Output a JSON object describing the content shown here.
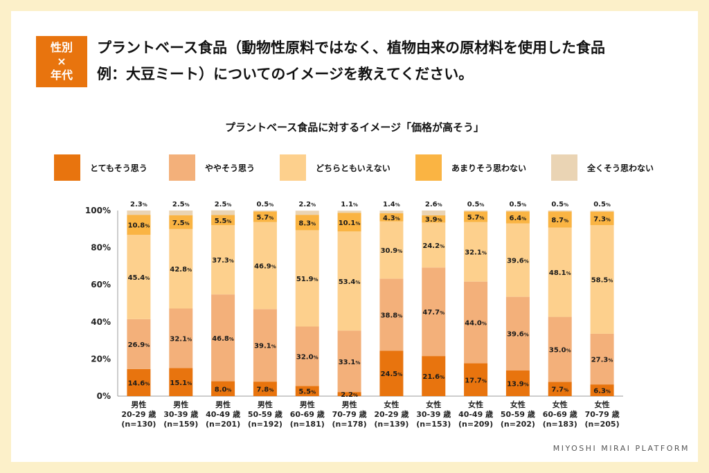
{
  "header": {
    "tag_line1": "性別",
    "tag_line2": "×",
    "tag_line3": "年代",
    "title_line1": "プラントベース食品（動物性原料ではなく、植物由来の原材料を使用した食品",
    "title_line2": "例：大豆ミート）についてのイメージを教えてください。"
  },
  "footer": {
    "brand": "MIYOSHI MIRAI PLATFORM"
  },
  "colors": {
    "totemo": "#e8740e",
    "yaya": "#f3b07a",
    "dochira": "#fdd08d",
    "amari": "#fab443",
    "mattaku": "#ead4b4"
  },
  "chart_data": {
    "type": "bar",
    "stacked": true,
    "title": "プラントベース食品に対するイメージ「価格が高そう」",
    "ylim": [
      0,
      100
    ],
    "yticks": [
      "0%",
      "20%",
      "40%",
      "60%",
      "80%",
      "100%"
    ],
    "unit": "%",
    "categories": [
      {
        "gender": "男性",
        "age": "20-29 歳",
        "n": "(n=130)"
      },
      {
        "gender": "男性",
        "age": "30-39 歳",
        "n": "(n=159)"
      },
      {
        "gender": "男性",
        "age": "40-49 歳",
        "n": "(n=201)"
      },
      {
        "gender": "男性",
        "age": "50-59 歳",
        "n": "(n=192)"
      },
      {
        "gender": "男性",
        "age": "60-69 歳",
        "n": "(n=181)"
      },
      {
        "gender": "男性",
        "age": "70-79 歳",
        "n": "(n=178)"
      },
      {
        "gender": "女性",
        "age": "20-29 歳",
        "n": "(n=139)"
      },
      {
        "gender": "女性",
        "age": "30-39 歳",
        "n": "(n=153)"
      },
      {
        "gender": "女性",
        "age": "40-49 歳",
        "n": "(n=209)"
      },
      {
        "gender": "女性",
        "age": "50-59 歳",
        "n": "(n=202)"
      },
      {
        "gender": "女性",
        "age": "60-69 歳",
        "n": "(n=183)"
      },
      {
        "gender": "女性",
        "age": "70-79 歳",
        "n": "(n=205)"
      }
    ],
    "series": [
      {
        "key": "totemo",
        "name": "とてもそう思う",
        "values": [
          14.6,
          15.1,
          8.0,
          7.8,
          5.5,
          2.2,
          24.5,
          21.6,
          17.7,
          13.9,
          7.7,
          6.3
        ]
      },
      {
        "key": "yaya",
        "name": "ややそう思う",
        "values": [
          26.9,
          32.1,
          46.8,
          39.1,
          32.0,
          33.1,
          38.8,
          47.7,
          44.0,
          39.6,
          35.0,
          27.3
        ]
      },
      {
        "key": "dochira",
        "name": "どちらともいえない",
        "values": [
          45.4,
          42.8,
          37.3,
          46.9,
          51.9,
          53.4,
          30.9,
          24.2,
          32.1,
          39.6,
          48.1,
          58.5
        ]
      },
      {
        "key": "amari",
        "name": "あまりそう思わない",
        "values": [
          10.8,
          7.5,
          5.5,
          5.7,
          8.3,
          10.1,
          4.3,
          3.9,
          5.7,
          6.4,
          8.7,
          7.3
        ]
      },
      {
        "key": "mattaku",
        "name": "全くそう思わない",
        "values": [
          2.3,
          2.5,
          2.5,
          0.5,
          2.2,
          1.1,
          1.4,
          2.6,
          0.5,
          0.5,
          0.5,
          0.5
        ]
      }
    ]
  }
}
